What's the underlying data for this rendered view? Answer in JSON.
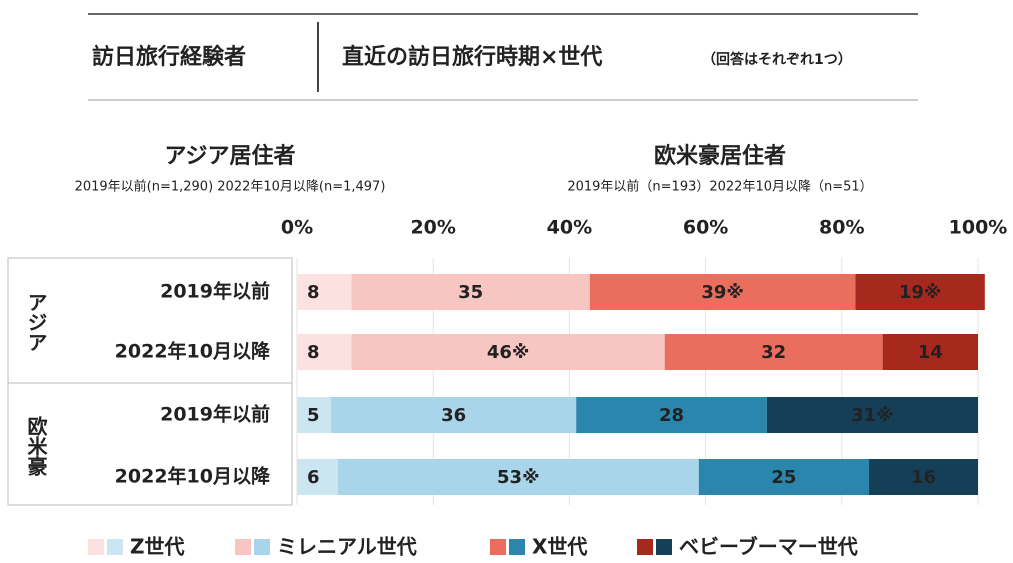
{
  "header": {
    "left": "訪日旅行経験者",
    "right": "直近の訪日旅行時期×世代",
    "note": "（回答はそれぞれ1つ）"
  },
  "chart_data": {
    "type": "bar",
    "orientation": "horizontal",
    "stacked": true,
    "groups": [
      {
        "label": "アジア",
        "title": "アジア居住者",
        "note": "2019年以前(n=1,290) 2022年10月以降(n=1,497)",
        "title_color": "#e04a32"
      },
      {
        "label": "欧米豪",
        "title": "欧米豪居住者",
        "note": "2019年以前（n=193）2022年10月以降（n=51）",
        "title_color": "#2a7fa6"
      }
    ],
    "categories": [
      "2019年以前",
      "2022年10月以降",
      "2019年以前",
      "2022年10月以降"
    ],
    "series": [
      {
        "name": "Z世代",
        "colors": [
          "#fbe1df",
          "#cce6f1"
        ],
        "values": [
          8,
          8,
          5,
          6
        ],
        "value_labels": [
          "8",
          "8",
          "5",
          "6"
        ]
      },
      {
        "name": "ミレニアル世代",
        "colors": [
          "#f7c6c2",
          "#a8d5e9"
        ],
        "values": [
          35,
          46,
          36,
          53
        ],
        "value_labels": [
          "35",
          "46※",
          "36",
          "53※"
        ]
      },
      {
        "name": "X世代",
        "colors": [
          "#ea6d5d",
          "#2b86ad"
        ],
        "values": [
          39,
          32,
          28,
          25
        ],
        "value_labels": [
          "39※",
          "32",
          "28",
          "25"
        ]
      },
      {
        "name": "ベビーブーマー世代",
        "colors": [
          "#a7281c",
          "#143f56"
        ],
        "values": [
          19,
          14,
          31,
          16
        ],
        "value_labels": [
          "19※",
          "14",
          "31※",
          "16"
        ]
      }
    ],
    "xlim": [
      0,
      100
    ],
    "xticks": [
      {
        "value": 0,
        "label": "0%"
      },
      {
        "value": 20,
        "label": "20%"
      },
      {
        "value": 40,
        "label": "40%"
      },
      {
        "value": 60,
        "label": "60%"
      },
      {
        "value": 80,
        "label": "80%"
      },
      {
        "value": 100,
        "label": "100%"
      }
    ]
  }
}
